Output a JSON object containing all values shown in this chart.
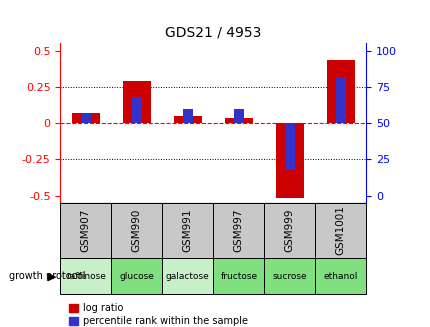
{
  "title": "GDS21 / 4953",
  "categories": [
    "GSM907",
    "GSM990",
    "GSM991",
    "GSM997",
    "GSM999",
    "GSM1001"
  ],
  "protocols": [
    "raffinose",
    "glucose",
    "galactose",
    "fructose",
    "sucrose",
    "ethanol"
  ],
  "log_ratio": [
    0.07,
    0.29,
    0.05,
    0.04,
    -0.52,
    0.44
  ],
  "percentile_rank": [
    57,
    68,
    60,
    60,
    18,
    82
  ],
  "bar_color_red": "#cc0000",
  "bar_color_blue": "#3333cc",
  "bg_gray": "#c8c8c8",
  "bg_green_light": "#c8f0c8",
  "bg_green_dark": "#80e080",
  "ylim_left": [
    -0.55,
    0.56
  ],
  "yticks_left": [
    -0.5,
    -0.25,
    0.0,
    0.25,
    0.5
  ],
  "yticks_right": [
    0,
    25,
    50,
    75,
    100
  ],
  "legend_red": "log ratio",
  "legend_blue": "percentile rank within the sample",
  "red_bar_width": 0.55,
  "blue_bar_width": 0.2
}
